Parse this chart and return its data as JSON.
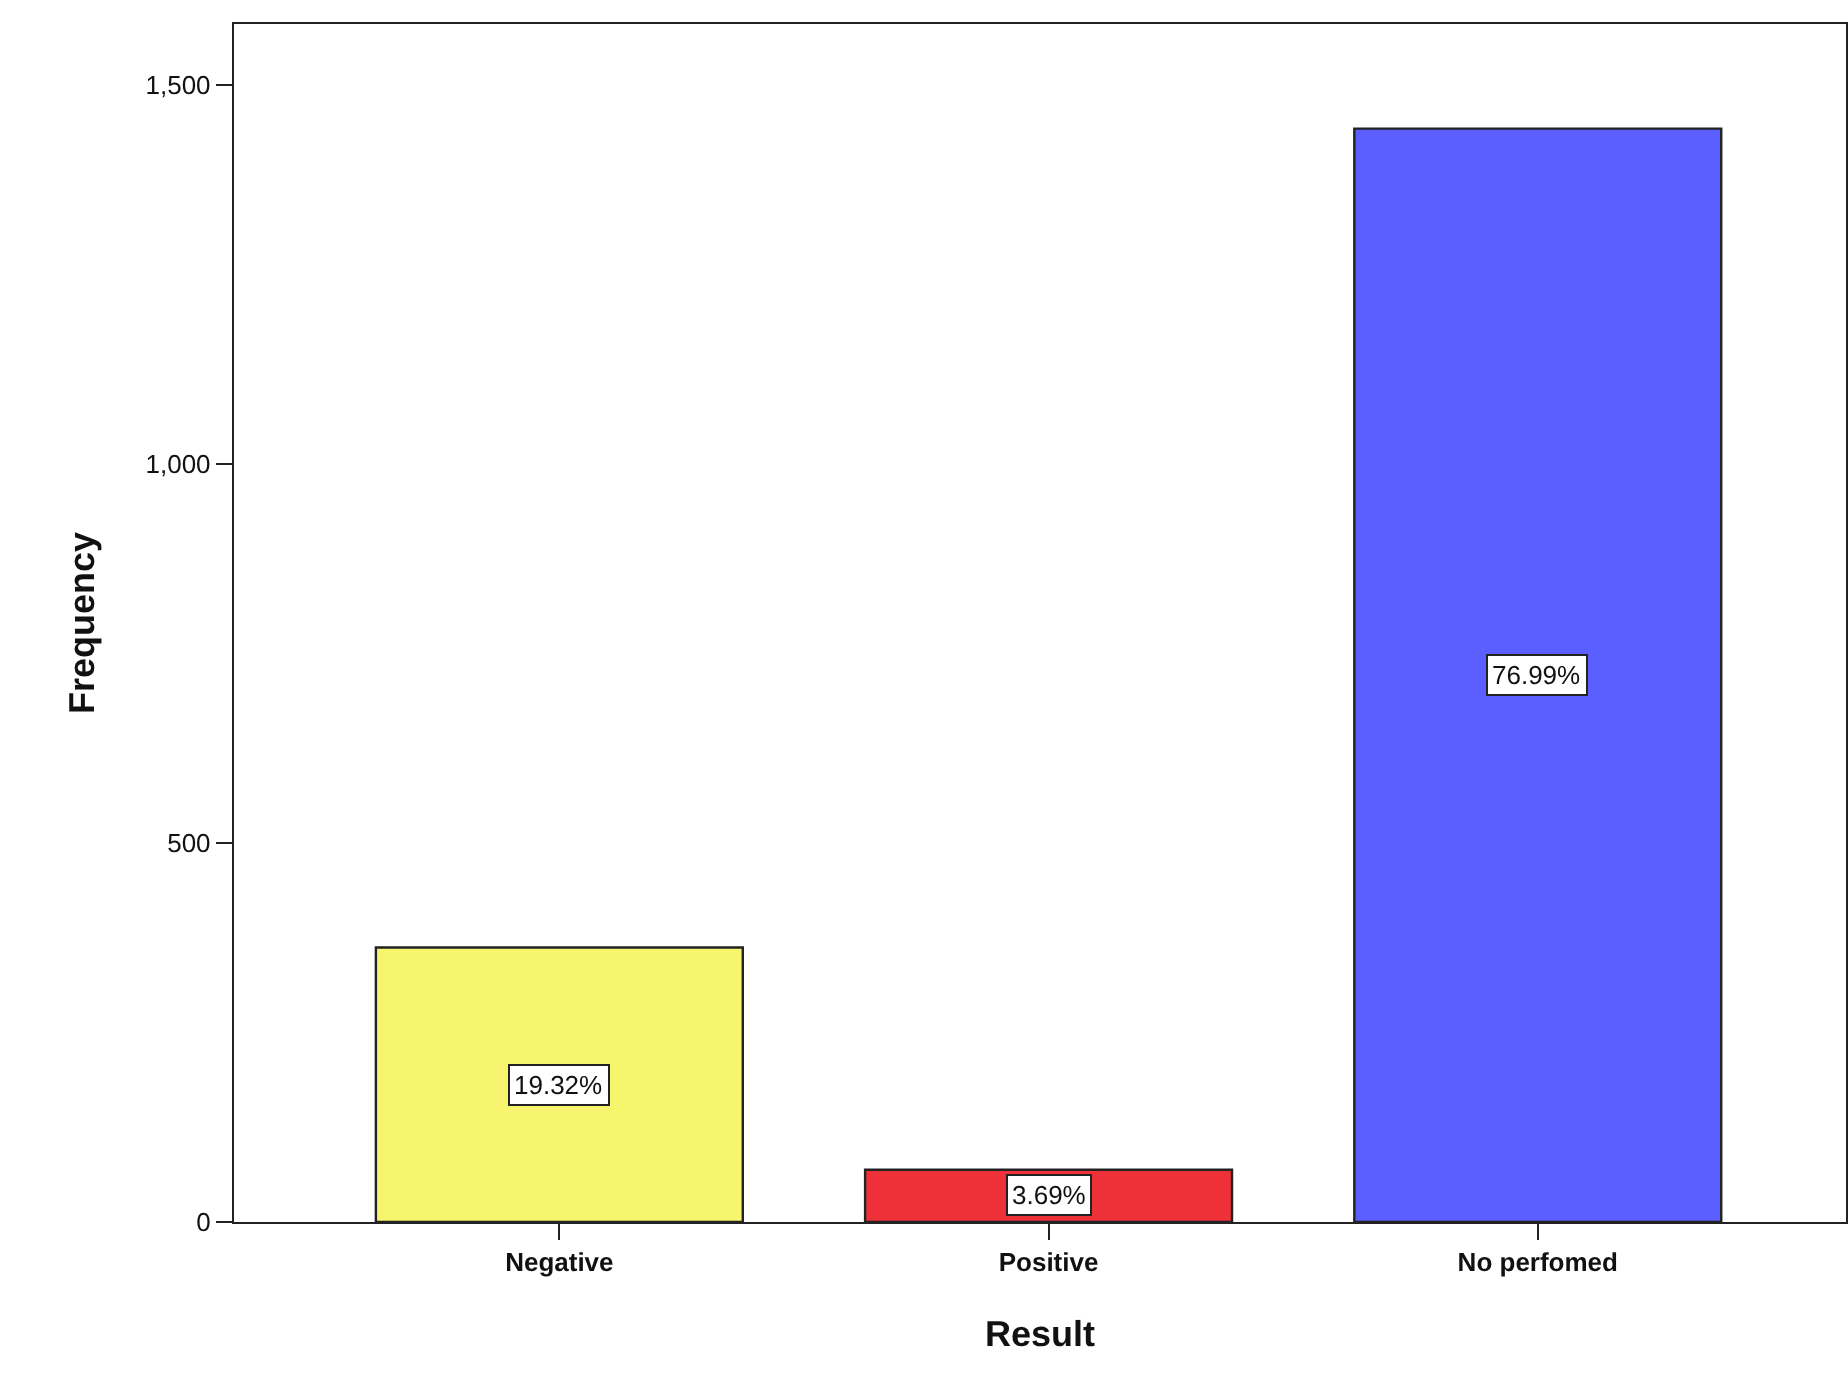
{
  "chart_data": {
    "type": "bar",
    "xlabel": "Result",
    "ylabel": "Frequency",
    "categories": [
      "Negative",
      "Positive",
      "No perfomed"
    ],
    "values": [
      362,
      69,
      1442
    ],
    "colors": [
      "#f7f56e",
      "#ee3038",
      "#5c5fff"
    ],
    "annotations": [
      "19.32%",
      "3.69%",
      "76.99%"
    ],
    "ylim": [
      0,
      1580
    ],
    "yticks": [
      0,
      {
        "value": 500,
        "label": "500"
      },
      {
        "value": 1000,
        "label": "1,000"
      },
      {
        "value": 1500,
        "label": "1,500"
      }
    ],
    "grid": false,
    "legend": false
  }
}
